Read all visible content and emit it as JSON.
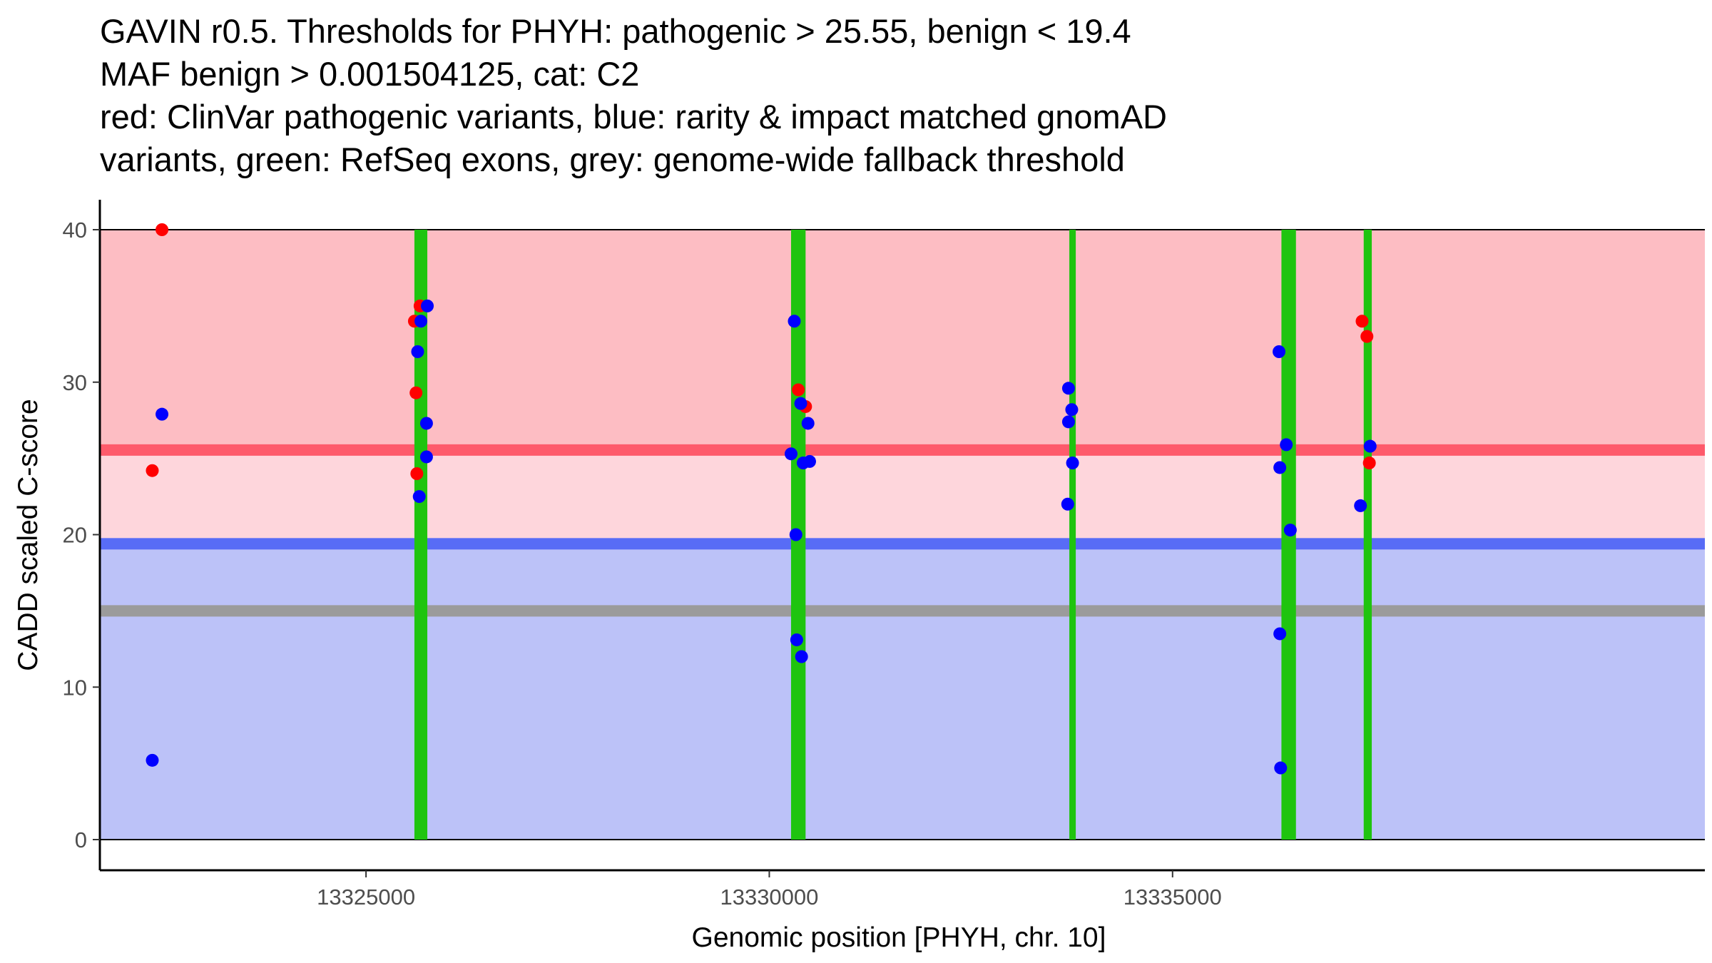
{
  "chart_data": {
    "type": "scatter",
    "title": [
      "GAVIN r0.5. Thresholds for PHYH: pathogenic > 25.55, benign < 19.4",
      "MAF benign > 0.001504125, cat: C2",
      "red: ClinVar pathogenic variants, blue: rarity & impact matched gnomAD",
      "variants, green: RefSeq exons, grey: genome-wide fallback threshold"
    ],
    "xlabel": "Genomic position [PHYH, chr. 10]",
    "ylabel": "CADD scaled C-score",
    "xlim": [
      13321700,
      13341600
    ],
    "ylim": [
      -2,
      42
    ],
    "x_ticks": [
      13325000,
      13330000,
      13335000
    ],
    "y_ticks": [
      0,
      10,
      20,
      30,
      40
    ],
    "thresholds": {
      "pathogenic": 25.55,
      "benign": 19.4,
      "fallback": 15
    },
    "colors": {
      "pathogenic_region": "#fdbdc3",
      "intermediate_region": "#fed6dc",
      "benign_region": "#bcc2f8",
      "pathogenic_line": "#fe5a6b",
      "benign_line": "#586cf6",
      "fallback_line": "#9b9b9b",
      "exon": "#1fc40f",
      "clinvar": "#ff0000",
      "gnomad": "#0000ff"
    },
    "exons": [
      [
        13325600,
        13325760
      ],
      [
        13330270,
        13330450
      ],
      [
        13333720,
        13333800
      ],
      [
        13336350,
        13336530
      ],
      [
        13337370,
        13337470
      ]
    ],
    "series": [
      {
        "name": "ClinVar pathogenic",
        "color": "#ff0000",
        "points": [
          [
            13322470,
            40.0
          ],
          [
            13322350,
            24.2
          ],
          [
            13325600,
            34.0
          ],
          [
            13325670,
            35.0
          ],
          [
            13325620,
            29.3
          ],
          [
            13325630,
            24.0
          ],
          [
            13330360,
            29.5
          ],
          [
            13330450,
            28.4
          ],
          [
            13337350,
            34.0
          ],
          [
            13337410,
            33.0
          ],
          [
            13337440,
            24.7
          ]
        ]
      },
      {
        "name": "gnomAD matched",
        "color": "#0000ff",
        "points": [
          [
            13322470,
            27.9
          ],
          [
            13322350,
            5.2
          ],
          [
            13325760,
            35.0
          ],
          [
            13325680,
            34.0
          ],
          [
            13325640,
            32.0
          ],
          [
            13325750,
            27.3
          ],
          [
            13325750,
            25.1
          ],
          [
            13325660,
            22.5
          ],
          [
            13330310,
            34.0
          ],
          [
            13330390,
            28.6
          ],
          [
            13330480,
            27.3
          ],
          [
            13330270,
            25.3
          ],
          [
            13330420,
            24.7
          ],
          [
            13330500,
            24.8
          ],
          [
            13330330,
            20.0
          ],
          [
            13330340,
            13.1
          ],
          [
            13330400,
            12.0
          ],
          [
            13333710,
            29.6
          ],
          [
            13333750,
            28.2
          ],
          [
            13333710,
            27.4
          ],
          [
            13333760,
            24.7
          ],
          [
            13333700,
            22.0
          ],
          [
            13336320,
            32.0
          ],
          [
            13336410,
            25.9
          ],
          [
            13336330,
            24.4
          ],
          [
            13336460,
            20.3
          ],
          [
            13336330,
            13.5
          ],
          [
            13336340,
            4.7
          ],
          [
            13337330,
            21.9
          ],
          [
            13337450,
            25.8
          ]
        ]
      }
    ]
  }
}
